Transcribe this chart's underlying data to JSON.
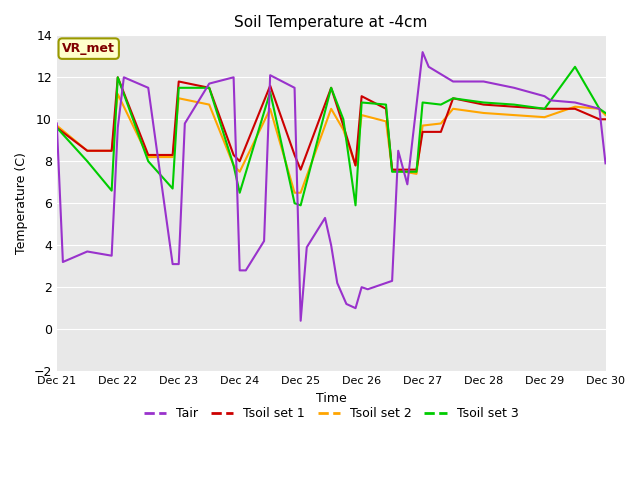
{
  "title": "Soil Temperature at -4cm",
  "xlabel": "Time",
  "ylabel": "Temperature (C)",
  "ylim": [
    -2,
    14
  ],
  "yticks": [
    -2,
    0,
    2,
    4,
    6,
    8,
    10,
    12,
    14
  ],
  "annotation": "VR_met",
  "plot_bg_color": "#e8e8e8",
  "fig_bg_color": "#ffffff",
  "grid_color": "#ffffff",
  "series": {
    "Tair": {
      "color": "#9932cc",
      "linewidth": 1.5,
      "x": [
        0,
        0.1,
        0.5,
        0.9,
        1.0,
        1.1,
        1.5,
        1.9,
        2.0,
        2.1,
        2.5,
        2.9,
        3.0,
        3.1,
        3.4,
        3.5,
        3.9,
        4.0,
        4.1,
        4.4,
        4.5,
        4.6,
        4.75,
        4.9,
        5.0,
        5.1,
        5.5,
        5.6,
        5.75,
        6.0,
        6.1,
        6.5,
        6.9,
        7.0,
        7.5,
        8.0,
        8.1,
        8.5,
        8.9,
        9.0
      ],
      "y": [
        9.8,
        3.2,
        3.7,
        3.5,
        9.6,
        12.0,
        11.5,
        3.1,
        3.1,
        9.8,
        11.7,
        12.0,
        2.8,
        2.8,
        4.2,
        12.1,
        11.5,
        0.4,
        3.9,
        5.3,
        4.0,
        2.2,
        1.2,
        1.0,
        2.0,
        1.9,
        2.3,
        8.5,
        6.9,
        13.2,
        12.5,
        11.8,
        11.8,
        11.8,
        11.5,
        11.1,
        10.9,
        10.8,
        10.5,
        7.9
      ]
    },
    "Tsoil_set1": {
      "color": "#cc0000",
      "linewidth": 1.5,
      "x": [
        0,
        0.5,
        0.9,
        1.0,
        1.5,
        1.9,
        2.0,
        2.5,
        2.9,
        3.0,
        3.5,
        3.9,
        4.0,
        4.5,
        4.7,
        4.9,
        5.0,
        5.4,
        5.5,
        5.9,
        6.0,
        6.3,
        6.5,
        7.0,
        7.5,
        8.0,
        8.5,
        8.9,
        9.0
      ],
      "y": [
        9.6,
        8.5,
        8.5,
        12.0,
        8.3,
        8.3,
        11.8,
        11.5,
        8.3,
        8.0,
        11.6,
        8.3,
        7.6,
        11.5,
        9.7,
        7.8,
        11.1,
        10.5,
        7.6,
        7.6,
        9.4,
        9.4,
        11.0,
        10.7,
        10.6,
        10.5,
        10.5,
        10.0,
        10.0
      ]
    },
    "Tsoil_set2": {
      "color": "#ffa500",
      "linewidth": 1.5,
      "x": [
        0,
        0.5,
        0.9,
        1.0,
        1.5,
        1.9,
        2.0,
        2.5,
        2.9,
        3.0,
        3.5,
        3.9,
        4.0,
        4.5,
        4.7,
        4.9,
        5.0,
        5.4,
        5.5,
        5.9,
        6.0,
        6.3,
        6.5,
        7.0,
        7.5,
        8.0,
        8.5,
        8.9,
        9.0
      ],
      "y": [
        9.7,
        8.5,
        8.5,
        11.2,
        8.2,
        8.2,
        11.0,
        10.7,
        7.8,
        7.5,
        10.5,
        6.5,
        6.5,
        10.5,
        9.5,
        7.8,
        10.2,
        9.9,
        7.6,
        7.4,
        9.7,
        9.8,
        10.5,
        10.3,
        10.2,
        10.1,
        10.6,
        10.5,
        10.2
      ]
    },
    "Tsoil_set3": {
      "color": "#00cc00",
      "linewidth": 1.5,
      "x": [
        0,
        0.5,
        0.9,
        1.0,
        1.5,
        1.9,
        2.0,
        2.5,
        2.9,
        3.0,
        3.5,
        3.9,
        4.0,
        4.5,
        4.7,
        4.9,
        5.0,
        5.4,
        5.5,
        5.9,
        6.0,
        6.3,
        6.5,
        7.0,
        7.5,
        8.0,
        8.5,
        8.9,
        9.0
      ],
      "y": [
        9.6,
        8.0,
        6.6,
        12.0,
        8.0,
        6.7,
        11.5,
        11.5,
        7.8,
        6.5,
        11.3,
        6.0,
        5.9,
        11.5,
        10.0,
        5.9,
        10.8,
        10.7,
        7.5,
        7.5,
        10.8,
        10.7,
        11.0,
        10.8,
        10.7,
        10.5,
        12.5,
        10.5,
        10.3
      ]
    }
  },
  "xtick_labels": [
    "Dec 21",
    "Dec 22",
    "Dec 23",
    "Dec 24",
    "Dec 25",
    "Dec 26",
    "Dec 27",
    "Dec 28",
    "Dec 29",
    "Dec 30"
  ],
  "legend_labels": [
    "Tair",
    "Tsoil set 1",
    "Tsoil set 2",
    "Tsoil set 3"
  ],
  "legend_colors": [
    "#9932cc",
    "#cc0000",
    "#ffa500",
    "#00cc00"
  ]
}
